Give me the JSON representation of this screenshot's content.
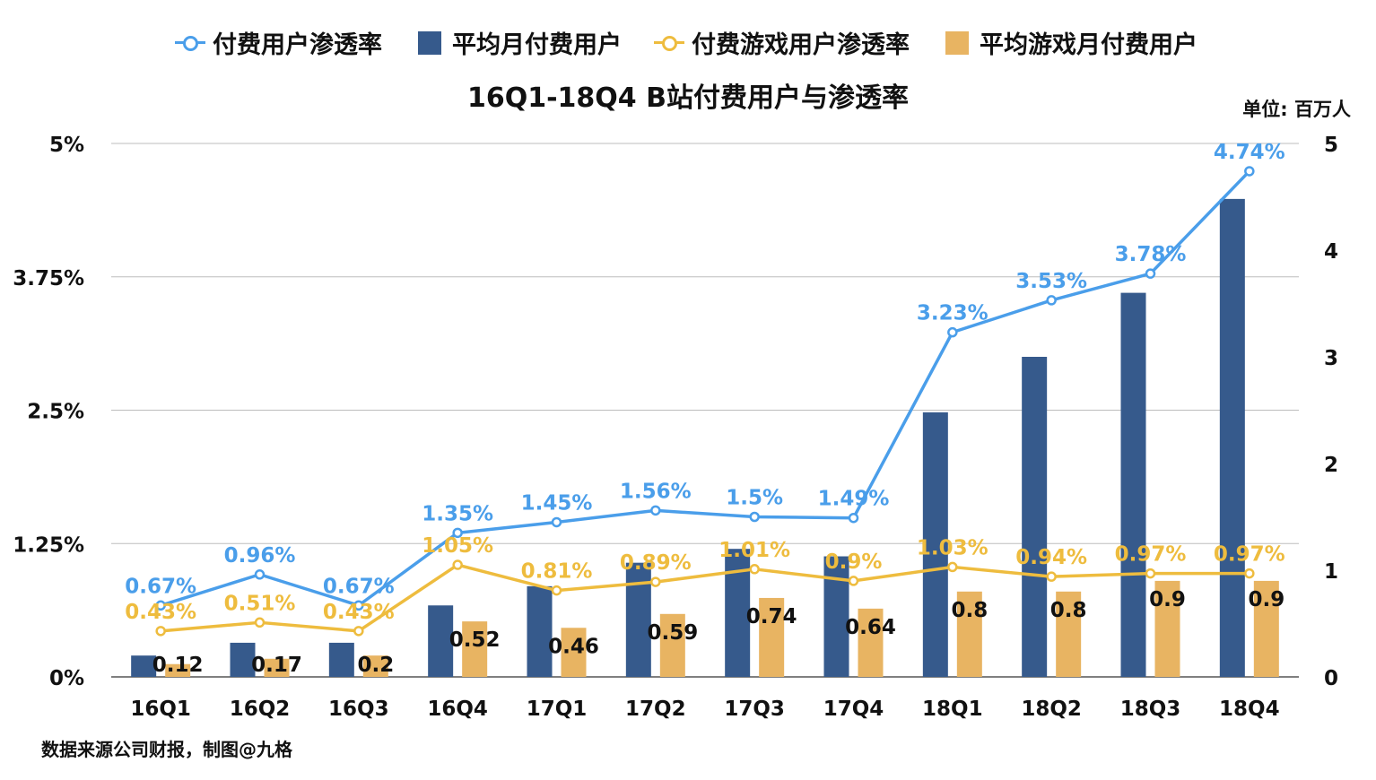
{
  "title": "16Q1-18Q4 B站付费用户与渗透率",
  "unit_label": "单位: 百万人",
  "source_note": "数据来源公司财报，制图@九格",
  "legend": [
    {
      "label": "付费用户渗透率",
      "kind": "line",
      "color": "#4a9eea"
    },
    {
      "label": "平均月付费用户",
      "kind": "bar",
      "color": "#365a8c"
    },
    {
      "label": "付费游戏用户渗透率",
      "kind": "line",
      "color": "#eebc3e"
    },
    {
      "label": "平均游戏月付费用户",
      "kind": "bar",
      "color": "#e8b462"
    }
  ],
  "chart_data": {
    "type": "bar",
    "title": "16Q1-18Q4 B站付费用户与渗透率",
    "categories": [
      "16Q1",
      "16Q2",
      "16Q3",
      "16Q4",
      "17Q1",
      "17Q2",
      "17Q3",
      "17Q4",
      "18Q1",
      "18Q2",
      "18Q3",
      "18Q4"
    ],
    "left_axis": {
      "ticks": [
        "0%",
        "1.25%",
        "2.5%",
        "3.75%",
        "5%"
      ],
      "range": [
        0,
        5
      ]
    },
    "right_axis": {
      "ticks": [
        "0",
        "1",
        "2",
        "3",
        "4",
        "5"
      ],
      "range": [
        0,
        5
      ]
    },
    "grid": true,
    "legend_position": "top",
    "series": [
      {
        "name": "付费用户渗透率",
        "kind": "line",
        "axis": "left",
        "color": "#4a9eea",
        "values": [
          0.67,
          0.96,
          0.67,
          1.35,
          1.45,
          1.56,
          1.5,
          1.49,
          3.23,
          3.53,
          3.78,
          4.74
        ],
        "labels": [
          "0.67%",
          "0.96%",
          "0.67%",
          "1.35%",
          "1.45%",
          "1.56%",
          "1.5%",
          "1.49%",
          "3.23%",
          "3.53%",
          "3.78%",
          "4.74%"
        ]
      },
      {
        "name": "平均月付费用户",
        "kind": "bar",
        "axis": "right",
        "color": "#365a8c",
        "values": [
          0.2,
          0.32,
          0.32,
          0.67,
          0.85,
          1.07,
          1.2,
          1.13,
          2.48,
          3.0,
          3.6,
          4.48
        ]
      },
      {
        "name": "付费游戏用户渗透率",
        "kind": "line",
        "axis": "left",
        "color": "#eebc3e",
        "values": [
          0.43,
          0.51,
          0.43,
          1.05,
          0.81,
          0.89,
          1.01,
          0.9,
          1.03,
          0.94,
          0.97,
          0.97
        ],
        "labels": [
          "0.43%",
          "0.51%",
          "0.43%",
          "1.05%",
          "0.81%",
          "0.89%",
          "1.01%",
          "0.9%",
          "1.03%",
          "0.94%",
          "0.97%",
          "0.97%"
        ]
      },
      {
        "name": "平均游戏月付费用户",
        "kind": "bar",
        "axis": "right",
        "color": "#e8b462",
        "values": [
          0.12,
          0.17,
          0.2,
          0.52,
          0.46,
          0.59,
          0.74,
          0.64,
          0.8,
          0.8,
          0.9,
          0.9
        ],
        "labels": [
          "0.12",
          "0.17",
          "0.2",
          "0.52",
          "0.46",
          "0.59",
          "0.74",
          "0.64",
          "0.8",
          "0.8",
          "0.9",
          "0.9"
        ]
      }
    ]
  }
}
